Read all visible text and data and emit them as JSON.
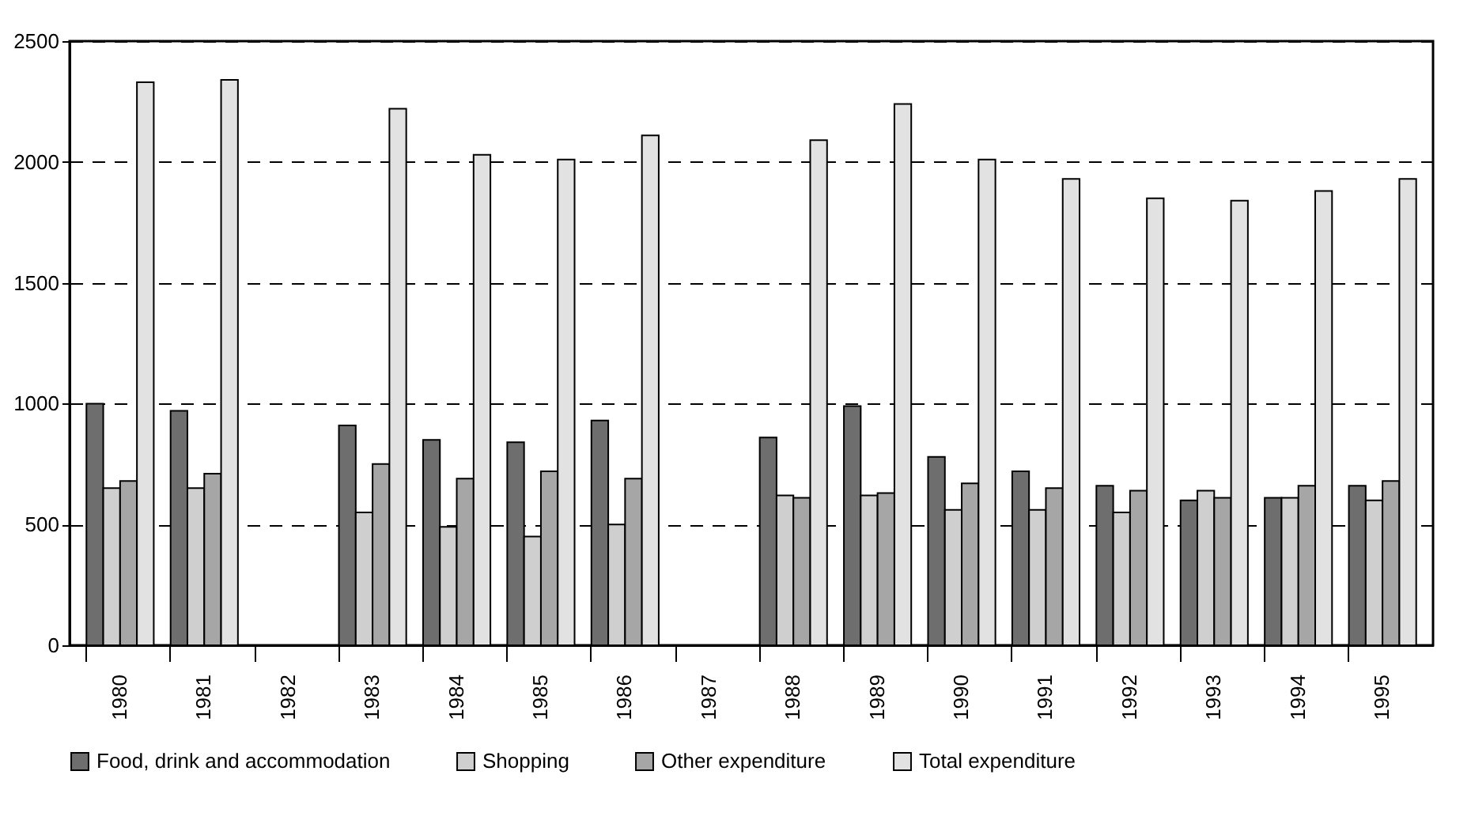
{
  "chart_data": {
    "type": "bar",
    "categories": [
      "1980",
      "1981",
      "1982",
      "1983",
      "1984",
      "1985",
      "1986",
      "1987",
      "1988",
      "1989",
      "1990",
      "1991",
      "1992",
      "1993",
      "1994",
      "1995"
    ],
    "series": [
      {
        "name": "Food, drink and accommodation",
        "color": "#6e6e6e",
        "values": [
          1000,
          970,
          null,
          910,
          850,
          840,
          930,
          null,
          860,
          990,
          780,
          720,
          660,
          600,
          610,
          660
        ]
      },
      {
        "name": "Shopping",
        "color": "#cfcfcf",
        "values": [
          650,
          650,
          null,
          550,
          490,
          450,
          500,
          null,
          620,
          620,
          560,
          560,
          550,
          640,
          610,
          600
        ]
      },
      {
        "name": "Other expenditure",
        "color": "#a6a6a6",
        "values": [
          680,
          710,
          null,
          750,
          690,
          720,
          690,
          null,
          610,
          630,
          670,
          650,
          640,
          610,
          660,
          680
        ]
      },
      {
        "name": "Total expenditure",
        "color": "#e2e2e2",
        "values": [
          2330,
          2340,
          null,
          2220,
          2030,
          2010,
          2110,
          null,
          2090,
          2240,
          2010,
          1930,
          1850,
          1840,
          1880,
          1930
        ]
      }
    ],
    "ylim": [
      0,
      2500
    ],
    "yticks": [
      0,
      500,
      1000,
      1500,
      2000,
      2500
    ],
    "grid": "y",
    "legend": "bottom"
  }
}
